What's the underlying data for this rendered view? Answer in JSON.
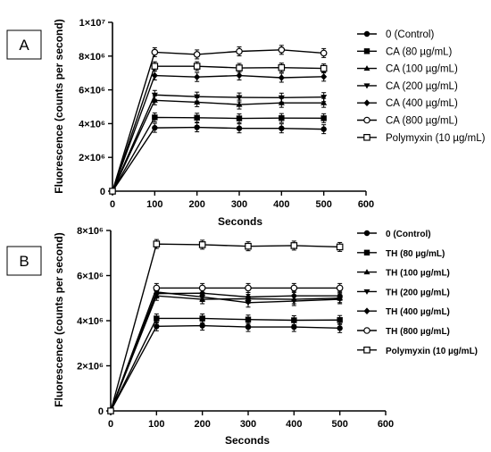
{
  "chart_data": [
    {
      "panel": "A",
      "type": "line",
      "xlabel": "Seconds",
      "ylabel": "Fluorescence (counts per second)",
      "xlim": [
        0,
        600
      ],
      "ylim": [
        0,
        10000000
      ],
      "x_ticks": [
        "0",
        "100",
        "200",
        "300",
        "400",
        "500",
        "600"
      ],
      "y_ticks": [
        "0",
        "2×10⁶",
        "4×10⁶",
        "6×10⁶",
        "8×10⁶",
        "1×10⁷"
      ],
      "legend_position": "right",
      "x": [
        0,
        100,
        200,
        300,
        400,
        500
      ],
      "series": [
        {
          "name": "0 (Control)",
          "marker": "circle-filled",
          "values": [
            0,
            3750000,
            3780000,
            3720000,
            3720000,
            3670000
          ]
        },
        {
          "name": "CA (80 µg/mL)",
          "marker": "square-filled",
          "values": [
            0,
            4370000,
            4350000,
            4310000,
            4330000,
            4320000
          ]
        },
        {
          "name": "CA (100 µg/mL)",
          "marker": "triangle-up",
          "values": [
            0,
            5380000,
            5270000,
            5130000,
            5230000,
            5230000
          ]
        },
        {
          "name": "CA (200 µg/mL)",
          "marker": "triangle-down",
          "values": [
            0,
            5700000,
            5600000,
            5550000,
            5540000,
            5570000
          ]
        },
        {
          "name": "CA (400 µg/mL)",
          "marker": "diamond",
          "values": [
            0,
            6850000,
            6760000,
            6850000,
            6720000,
            6780000
          ]
        },
        {
          "name": "CA (800 µg/mL)",
          "marker": "circle-open",
          "values": [
            0,
            8230000,
            8100000,
            8280000,
            8370000,
            8180000
          ]
        },
        {
          "name": "Polymyxin (10 µg/mL)",
          "marker": "square-open",
          "values": [
            0,
            7400000,
            7400000,
            7300000,
            7320000,
            7270000
          ]
        }
      ]
    },
    {
      "panel": "B",
      "type": "line",
      "xlabel": "Seconds",
      "ylabel": "Fluorescence (counts per second)",
      "xlim": [
        0,
        600
      ],
      "ylim": [
        0,
        8000000
      ],
      "x_ticks": [
        "0",
        "100",
        "200",
        "300",
        "400",
        "500",
        "600"
      ],
      "y_ticks": [
        "0",
        "2×10⁶",
        "4×10⁶",
        "6×10⁶",
        "8×10⁶"
      ],
      "legend_position": "right",
      "x": [
        0,
        100,
        200,
        300,
        400,
        500
      ],
      "series": [
        {
          "name": "0 (Control)",
          "marker": "circle-filled",
          "values": [
            0,
            3750000,
            3780000,
            3720000,
            3720000,
            3670000
          ]
        },
        {
          "name": "TH (80 µg/mL)",
          "marker": "square-filled",
          "values": [
            0,
            4100000,
            4100000,
            4050000,
            4020000,
            4030000
          ]
        },
        {
          "name": "TH (100 µg/mL)",
          "marker": "triangle-up",
          "values": [
            0,
            5100000,
            4950000,
            4970000,
            4950000,
            5000000
          ]
        },
        {
          "name": "TH (200 µg/mL)",
          "marker": "triangle-down",
          "values": [
            0,
            5270000,
            5050000,
            4800000,
            4870000,
            4950000
          ]
        },
        {
          "name": "TH (400 µg/mL)",
          "marker": "diamond",
          "values": [
            0,
            5200000,
            5220000,
            5050000,
            5100000,
            5100000
          ]
        },
        {
          "name": "TH (800 µg/mL)",
          "marker": "circle-open",
          "values": [
            0,
            5450000,
            5450000,
            5450000,
            5450000,
            5450000
          ]
        },
        {
          "name": "Polymyxin (10 µg/mL)",
          "marker": "square-open",
          "values": [
            0,
            7400000,
            7370000,
            7300000,
            7330000,
            7270000
          ]
        }
      ]
    }
  ]
}
